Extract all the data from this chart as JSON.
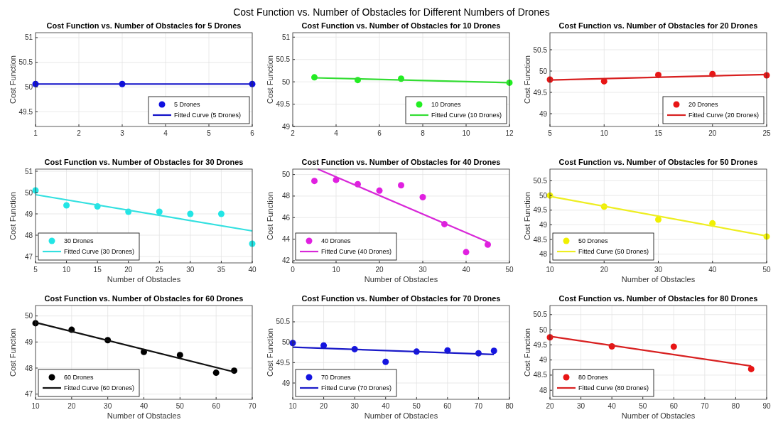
{
  "chart_data": [
    {
      "type": "scatter",
      "title": "Cost Function vs. Number of Obstacles for 5 Drones",
      "ylabel": "Cost Function",
      "annotations": [
        "Cost Function vs. Number of Obstacles for Different Numbers of Drones"
      ],
      "xlim": [
        1,
        6
      ],
      "xticks": [
        1,
        2,
        3,
        4,
        5,
        6
      ],
      "ylim": [
        49.2,
        51.1
      ],
      "yticks": [
        49.5,
        50,
        50.5,
        51
      ],
      "grid": true,
      "legend": "bottom right",
      "series": [
        {
          "name": "5 Drones",
          "marker": "circle",
          "color": "#1010e0",
          "x": [
            1,
            3,
            6
          ],
          "values": [
            50.06,
            50.06,
            50.06
          ]
        },
        {
          "name": "Fitted Curve (5 Drones)",
          "type": "line",
          "color": "#1010c8",
          "x": [
            1,
            6
          ],
          "values": [
            50.06,
            50.06
          ]
        }
      ]
    },
    {
      "type": "scatter",
      "title": "Cost Function vs. Number of Obstacles for 10 Drones",
      "ylabel": "Cost Function",
      "xlim": [
        2,
        12
      ],
      "xticks": [
        2,
        4,
        6,
        8,
        10,
        12
      ],
      "ylim": [
        49,
        51.1
      ],
      "yticks": [
        49,
        49.5,
        50,
        50.5,
        51
      ],
      "grid": true,
      "legend": "bottom right",
      "series": [
        {
          "name": "10 Drones",
          "marker": "circle",
          "color": "#22ee22",
          "x": [
            3,
            5,
            7,
            12
          ],
          "values": [
            50.1,
            50.04,
            50.07,
            49.98
          ]
        },
        {
          "name": "Fitted Curve (10 Drones)",
          "type": "line",
          "color": "#33dd33",
          "x": [
            3,
            12
          ],
          "values": [
            50.09,
            49.98
          ]
        }
      ]
    },
    {
      "type": "scatter",
      "title": "Cost Function vs. Number of Obstacles for 20 Drones",
      "ylabel": "Cost Function",
      "xlim": [
        5,
        25
      ],
      "xticks": [
        5,
        10,
        15,
        20,
        25
      ],
      "ylim": [
        48.7,
        50.9
      ],
      "yticks": [
        49,
        49.5,
        50,
        50.5
      ],
      "grid": true,
      "legend": "bottom right",
      "series": [
        {
          "name": "20 Drones",
          "marker": "circle",
          "color": "#e81515",
          "x": [
            5,
            10,
            15,
            20,
            25
          ],
          "values": [
            49.8,
            49.76,
            49.91,
            49.93,
            49.9
          ]
        },
        {
          "name": "Fitted Curve (20 Drones)",
          "type": "line",
          "color": "#d82020",
          "x": [
            5,
            25
          ],
          "values": [
            49.79,
            49.92
          ]
        }
      ]
    },
    {
      "type": "scatter",
      "title": "Cost Function vs. Number of Obstacles for 30 Drones",
      "xlabel": "Number of Obstacles",
      "ylabel": "Cost Function",
      "xlim": [
        5,
        40
      ],
      "xticks": [
        5,
        10,
        15,
        20,
        25,
        30,
        35,
        40
      ],
      "ylim": [
        46.7,
        51.1
      ],
      "yticks": [
        47,
        48,
        49,
        50,
        51
      ],
      "grid": true,
      "legend": "bottom left",
      "series": [
        {
          "name": "30 Drones",
          "marker": "circle",
          "color": "#22e5e5",
          "x": [
            5,
            10,
            15,
            20,
            25,
            30,
            35,
            40
          ],
          "values": [
            50.1,
            49.4,
            49.35,
            49.1,
            49.1,
            49.0,
            49.0,
            47.6
          ]
        },
        {
          "name": "Fitted Curve (30 Drones)",
          "type": "line",
          "color": "#33e0e0",
          "x": [
            5,
            40
          ],
          "values": [
            49.9,
            48.2
          ]
        }
      ]
    },
    {
      "type": "scatter",
      "title": "Cost Function vs. Number of Obstacles for 40 Drones",
      "xlabel": "Number of Obstacles",
      "ylabel": "Cost Function",
      "xlim": [
        0,
        50
      ],
      "xticks": [
        0,
        10,
        20,
        30,
        40,
        50
      ],
      "ylim": [
        41.8,
        50.5
      ],
      "yticks": [
        42,
        44,
        46,
        48,
        50
      ],
      "grid": true,
      "legend": "bottom left",
      "series": [
        {
          "name": "40 Drones",
          "marker": "circle",
          "color": "#e020e0",
          "x": [
            5,
            10,
            15,
            20,
            25,
            30,
            35,
            40,
            45
          ],
          "values": [
            49.4,
            49.5,
            49.1,
            48.5,
            49.0,
            47.9,
            45.4,
            42.8,
            43.5
          ]
        },
        {
          "name": "Fitted Curve (40 Drones)",
          "type": "line",
          "color": "#d828d8",
          "x": [
            5.8,
            45
          ],
          "values": [
            50.5,
            43.75
          ]
        }
      ]
    },
    {
      "type": "scatter",
      "title": "Cost Function vs. Number of Obstacles for 50 Drones",
      "xlabel": "Number of Obstacles",
      "ylabel": "Cost Function",
      "xlim": [
        10,
        50
      ],
      "xticks": [
        10,
        20,
        30,
        40,
        50
      ],
      "ylim": [
        47.7,
        50.9
      ],
      "yticks": [
        48,
        48.5,
        49,
        49.5,
        50,
        50.5
      ],
      "grid": true,
      "legend": "bottom left",
      "series": [
        {
          "name": "50 Drones",
          "marker": "circle",
          "color": "#f0f000",
          "x": [
            10,
            20,
            30,
            40,
            50
          ],
          "values": [
            50.0,
            49.62,
            49.18,
            49.05,
            48.6
          ]
        },
        {
          "name": "Fitted Curve (50 Drones)",
          "type": "line",
          "color": "#eeee22",
          "x": [
            10,
            50
          ],
          "values": [
            49.97,
            48.62
          ]
        }
      ]
    },
    {
      "type": "scatter",
      "title": "Cost Function vs. Number of Obstacles for 60 Drones",
      "xlabel": "Number of Obstacles",
      "ylabel": "Cost Function",
      "xlim": [
        10,
        70
      ],
      "xticks": [
        10,
        20,
        30,
        40,
        50,
        60,
        70
      ],
      "ylim": [
        46.8,
        50.4
      ],
      "yticks": [
        47,
        48,
        49,
        50
      ],
      "grid": true,
      "legend": "bottom left",
      "series": [
        {
          "name": "60 Drones",
          "marker": "circle",
          "color": "#000000",
          "x": [
            10,
            20,
            30,
            40,
            50,
            60,
            65
          ],
          "values": [
            49.72,
            49.47,
            49.07,
            48.62,
            48.5,
            47.82,
            47.9
          ]
        },
        {
          "name": "Fitted Curve (60 Drones)",
          "type": "line",
          "color": "#111111",
          "x": [
            10,
            65
          ],
          "values": [
            49.75,
            47.85
          ]
        }
      ]
    },
    {
      "type": "scatter",
      "title": "Cost Function vs. Number of Obstacles for 70 Drones",
      "xlabel": "Number of Obstacles",
      "ylabel": "Cost Function",
      "xlim": [
        10,
        80
      ],
      "xticks": [
        10,
        20,
        30,
        40,
        50,
        60,
        70,
        80
      ],
      "ylim": [
        48.6,
        50.9
      ],
      "yticks": [
        49,
        49.5,
        50,
        50.5
      ],
      "grid": true,
      "legend": "bottom left",
      "series": [
        {
          "name": "70 Drones",
          "marker": "circle",
          "color": "#1515e0",
          "x": [
            10,
            20,
            30,
            40,
            50,
            60,
            70,
            75
          ],
          "values": [
            49.98,
            49.92,
            49.83,
            49.52,
            49.77,
            49.8,
            49.73,
            49.79
          ]
        },
        {
          "name": "Fitted Curve (70 Drones)",
          "type": "line",
          "color": "#1a1ac8",
          "x": [
            10,
            75
          ],
          "values": [
            49.88,
            49.7
          ]
        }
      ]
    },
    {
      "type": "scatter",
      "title": "Cost Function vs. Number of Obstacles for 80 Drones",
      "xlabel": "Number of Obstacles",
      "ylabel": "Cost Function",
      "xlim": [
        20,
        90
      ],
      "xticks": [
        20,
        30,
        40,
        50,
        60,
        70,
        80,
        90
      ],
      "ylim": [
        47.7,
        50.8
      ],
      "yticks": [
        48,
        48.5,
        49,
        49.5,
        50,
        50.5
      ],
      "grid": true,
      "legend": "bottom left",
      "series": [
        {
          "name": "80 Drones",
          "marker": "circle",
          "color": "#e81515",
          "x": [
            20,
            40,
            60,
            85
          ],
          "values": [
            49.75,
            49.45,
            49.44,
            48.7
          ]
        },
        {
          "name": "Fitted Curve (80 Drones)",
          "type": "line",
          "color": "#d82020",
          "x": [
            20,
            85
          ],
          "values": [
            49.78,
            48.8
          ]
        }
      ]
    }
  ]
}
